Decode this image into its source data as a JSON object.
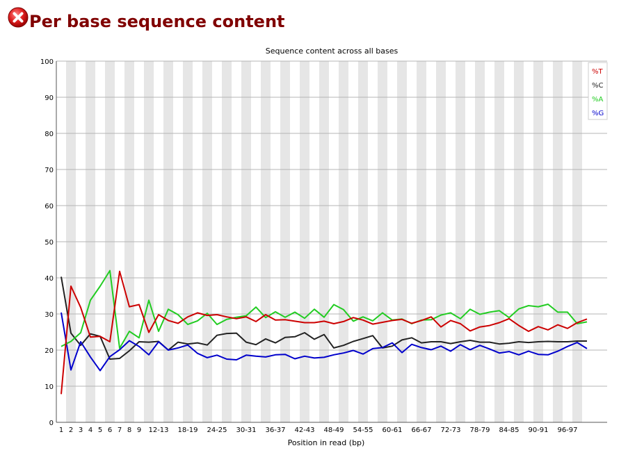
{
  "header": {
    "title": "Per base sequence content",
    "status_icon": "error-icon"
  },
  "chart_data": {
    "type": "line",
    "title": "Sequence content across all bases",
    "xlabel": "Position in read (bp)",
    "ylabel": "",
    "ylim": [
      0,
      100
    ],
    "yticks": [
      0,
      10,
      20,
      30,
      40,
      50,
      60,
      70,
      80,
      90,
      100
    ],
    "grid": true,
    "legend_position": "top-right",
    "categories": [
      "1",
      "2",
      "3",
      "4",
      "5",
      "6",
      "7",
      "8",
      "9",
      "10-11",
      "12-13",
      "14-15",
      "16-17",
      "18-19",
      "20-21",
      "22-23",
      "24-25",
      "26-27",
      "28-29",
      "30-31",
      "32-33",
      "34-35",
      "36-37",
      "38-39",
      "40-41",
      "42-43",
      "44-45",
      "46-47",
      "48-49",
      "50-51",
      "52-53",
      "54-55",
      "56-57",
      "58-59",
      "60-61",
      "62-63",
      "64-65",
      "66-67",
      "68-69",
      "70-71",
      "72-73",
      "74-75",
      "76-77",
      "78-79",
      "80-81",
      "82-83",
      "84-85",
      "86-87",
      "88-89",
      "90-91",
      "92-93",
      "94-95",
      "96-97",
      "98-99",
      "100-101"
    ],
    "tick_labels": [
      "1",
      "2",
      "3",
      "4",
      "5",
      "6",
      "7",
      "8",
      "9",
      "12-13",
      "18-19",
      "24-25",
      "30-31",
      "36-37",
      "42-43",
      "48-49",
      "54-55",
      "60-61",
      "66-67",
      "72-73",
      "78-79",
      "84-85",
      "90-91",
      "96-97"
    ],
    "series": [
      {
        "name": "%T",
        "color": "#cc0000",
        "values": [
          7.8,
          37.7,
          31.8,
          23.6,
          23.8,
          22.3,
          41.8,
          32.0,
          32.6,
          24.9,
          29.8,
          28.2,
          27.4,
          29.2,
          30.3,
          29.6,
          29.8,
          29.2,
          28.7,
          29.2,
          27.9,
          29.8,
          28.3,
          28.4,
          28.0,
          27.6,
          27.6,
          28.0,
          27.3,
          27.9,
          29.0,
          28.3,
          27.2,
          27.7,
          28.2,
          28.5,
          27.4,
          28.2,
          29.2,
          26.4,
          28.2,
          27.3,
          25.3,
          26.4,
          26.8,
          27.6,
          28.7,
          26.8,
          25.2,
          26.5,
          25.6,
          27.0,
          26.0,
          27.6,
          28.6
        ]
      },
      {
        "name": "%C",
        "color": "#222222",
        "values": [
          40.3,
          24.7,
          21.3,
          24.5,
          23.8,
          17.5,
          17.7,
          19.8,
          22.3,
          22.2,
          22.4,
          20.0,
          22.2,
          21.7,
          22.0,
          21.4,
          24.1,
          24.6,
          24.7,
          22.2,
          21.5,
          23.1,
          22.0,
          23.5,
          23.7,
          24.8,
          23.0,
          24.3,
          20.6,
          21.3,
          22.4,
          23.2,
          24.0,
          20.6,
          21.1,
          22.8,
          23.4,
          22.0,
          22.3,
          22.3,
          21.8,
          22.3,
          22.7,
          22.2,
          22.2,
          21.7,
          21.9,
          22.3,
          22.1,
          22.3,
          22.4,
          22.3,
          22.3,
          22.5,
          22.5
        ]
      },
      {
        "name": "%A",
        "color": "#22cc22",
        "values": [
          21.0,
          22.4,
          24.8,
          33.8,
          37.7,
          42.0,
          20.5,
          25.2,
          23.4,
          33.8,
          25.2,
          31.3,
          29.8,
          27.1,
          28.1,
          30.2,
          27.1,
          28.5,
          29.1,
          29.5,
          31.9,
          29.0,
          30.6,
          29.1,
          30.5,
          28.8,
          31.3,
          29.1,
          32.6,
          31.2,
          28.0,
          29.2,
          28.1,
          30.3,
          28.3,
          28.6,
          27.3,
          28.3,
          28.4,
          29.7,
          30.3,
          28.7,
          31.3,
          29.9,
          30.5,
          30.9,
          29.0,
          31.4,
          32.3,
          32.0,
          32.7,
          30.5,
          30.5,
          27.3,
          27.8
        ]
      },
      {
        "name": "%G",
        "color": "#0000cc",
        "values": [
          30.4,
          14.5,
          22.3,
          18.1,
          14.3,
          18.2,
          20.1,
          22.6,
          21.0,
          18.7,
          22.3,
          20.0,
          20.6,
          21.4,
          19.1,
          17.9,
          18.6,
          17.5,
          17.3,
          18.6,
          18.3,
          18.1,
          18.7,
          18.8,
          17.6,
          18.3,
          17.8,
          18.0,
          18.7,
          19.2,
          19.9,
          18.9,
          20.4,
          20.7,
          22.0,
          19.3,
          21.6,
          20.7,
          20.1,
          21.1,
          19.7,
          21.5,
          20.1,
          21.3,
          20.3,
          19.2,
          19.6,
          18.7,
          19.7,
          18.8,
          18.7,
          19.7,
          21.0,
          22.1,
          20.4
        ]
      }
    ]
  }
}
